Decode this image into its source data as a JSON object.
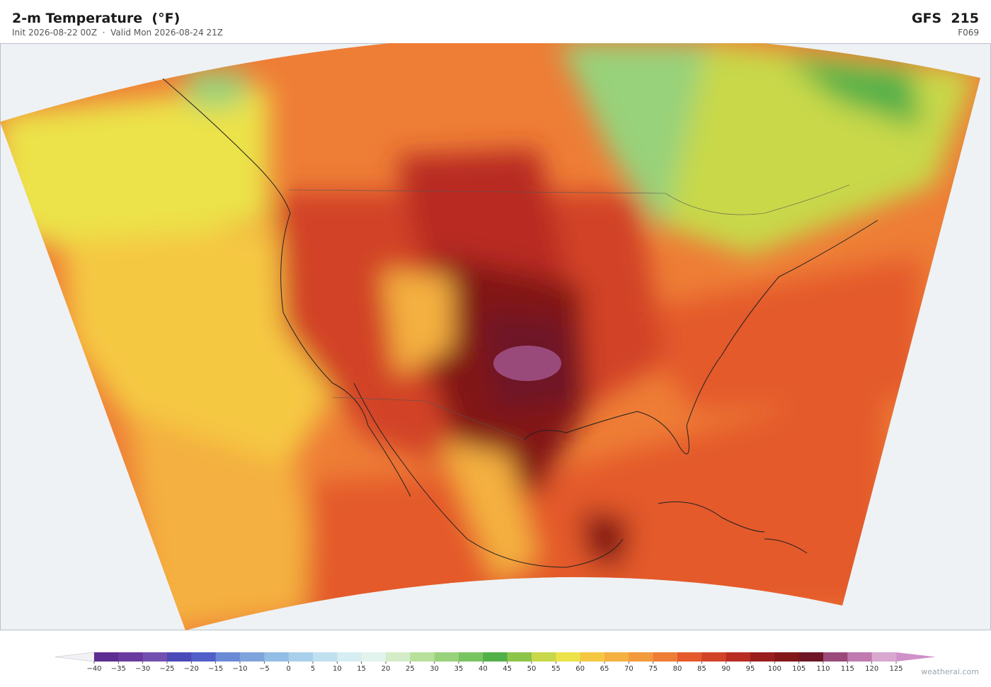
{
  "header": {
    "title": "2-m Temperature  (°F)",
    "subtitle": "Init 2026-08-22 00Z  ·  Valid Mon 2026-08-24 21Z",
    "model": "GFS  215",
    "forecast_hour": "F069"
  },
  "colorbar": {
    "lim": [
      -40,
      125
    ],
    "ticks": [
      {
        "value": -40,
        "label": "−40"
      },
      {
        "value": -35,
        "label": "−35"
      },
      {
        "value": -30,
        "label": "−30"
      },
      {
        "value": -25,
        "label": "−25"
      },
      {
        "value": -20,
        "label": "−20"
      },
      {
        "value": -15,
        "label": "−15"
      },
      {
        "value": -10,
        "label": "−10"
      },
      {
        "value": -5,
        "label": "−5"
      },
      0,
      5,
      10,
      15,
      20,
      25,
      30,
      35,
      40,
      45,
      50,
      55,
      60,
      65,
      70,
      75,
      80,
      85,
      90,
      95,
      100,
      105,
      110,
      115,
      120,
      125
    ],
    "colors": [
      "#5e2d91",
      "#6a3a9e",
      "#7350b0",
      "#4a4ab8",
      "#5060c8",
      "#6a8ad6",
      "#7fa4dc",
      "#92bde4",
      "#a8d0ea",
      "#bfe0ef",
      "#d6edf2",
      "#e3f3ee",
      "#d4edc8",
      "#b8e09a",
      "#98d27a",
      "#78c460",
      "#52b04a",
      "#8dc44a",
      "#c8d84a",
      "#ece24a",
      "#f5c842",
      "#f4b040",
      "#f29a3c",
      "#ee7d36",
      "#e45a2c",
      "#d24226",
      "#b82c22",
      "#9a1e1e",
      "#821818",
      "#6e1626",
      "#9a4a7a",
      "#c07ab0",
      "#d8a8d0"
    ],
    "extend_low_color": "#f2f2f6",
    "extend_high_color": "#d090c8"
  },
  "footer": {
    "credit": "weatherai.com"
  }
}
